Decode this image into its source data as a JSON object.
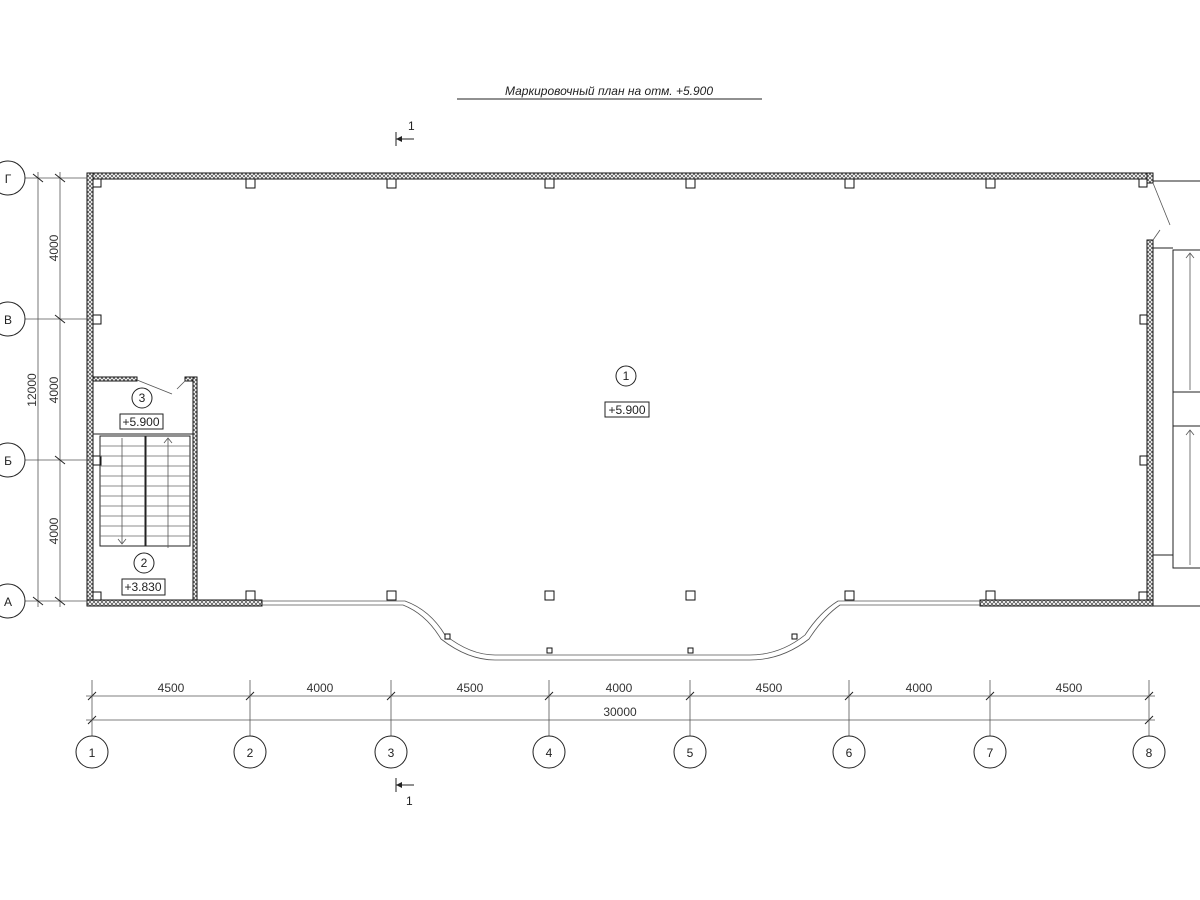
{
  "title": "Маркировочный план на отм. +5.900",
  "section_mark": "1",
  "rooms": [
    {
      "number": "1",
      "level": "+5.900"
    },
    {
      "number": "2",
      "level": "+3.830"
    },
    {
      "number": "3",
      "level": "+5.900"
    }
  ],
  "row_axes": [
    "Г",
    "В",
    "Б",
    "А"
  ],
  "column_axes": [
    "1",
    "2",
    "3",
    "4",
    "5",
    "6",
    "7",
    "8"
  ],
  "column_dimensions": [
    "4500",
    "4000",
    "4500",
    "4000",
    "4500",
    "4000",
    "4500"
  ],
  "overall_width": "30000",
  "row_dimensions": [
    "4000",
    "4000",
    "4000"
  ],
  "overall_depth": "12000"
}
